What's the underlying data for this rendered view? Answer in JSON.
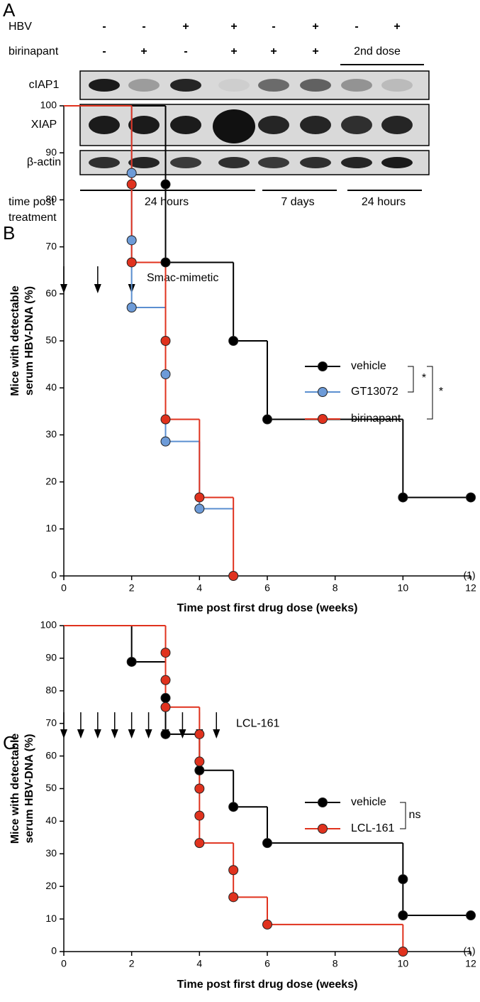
{
  "panel_a": {
    "letter": "A",
    "rows": [
      {
        "label": "HBV",
        "signs": [
          "-",
          "-",
          "+",
          "+",
          "-",
          "+",
          "-",
          "+"
        ]
      },
      {
        "label": "birinapant",
        "signs": [
          "-",
          "+",
          "-",
          "+",
          "+",
          "+"
        ],
        "span_label": "2nd dose"
      }
    ],
    "blots": [
      "cIAP1",
      "XIAP",
      "β-actin"
    ],
    "time_label": [
      "time post",
      "treatment"
    ],
    "time_groups": [
      "24 hours",
      "7 days",
      "24 hours"
    ]
  },
  "chart_data": [
    {
      "type": "step",
      "letter": "B",
      "dose_label": "Smac-mimetic",
      "dose_times": [
        0,
        1,
        2
      ],
      "x_label": "Time post first drug dose (weeks)",
      "y_label": [
        "Mice with detectable",
        "serum HBV-DNA (%)"
      ],
      "xlim": [
        0,
        12
      ],
      "xticks": [
        0,
        2,
        4,
        6,
        8,
        10,
        12
      ],
      "ylim": [
        0,
        100
      ],
      "yticks": [
        0,
        10,
        20,
        30,
        40,
        50,
        60,
        70,
        80,
        90,
        100
      ],
      "annotations": [
        "*",
        "*"
      ],
      "censor_note": "(1)",
      "series": [
        {
          "name": "vehicle",
          "color": "#000000",
          "marker_color": "#000000",
          "x": [
            0,
            3,
            5,
            6,
            10,
            12
          ],
          "values": [
            100,
            66.7,
            50,
            33.3,
            16.7,
            16.7
          ],
          "markers": {
            "x": [
              3,
              3,
              5,
              6,
              10,
              12
            ],
            "values": [
              83.3,
              66.7,
              50,
              33.3,
              16.7,
              16.7
            ]
          }
        },
        {
          "name": "GT13072",
          "color": "#5b8fd0",
          "marker_color": "#6d9bd8",
          "x": [
            0,
            2,
            3,
            4,
            5
          ],
          "values": [
            100,
            57.1,
            28.6,
            14.3,
            14.3
          ],
          "markers": {
            "x": [
              2,
              2,
              2,
              3,
              3,
              4
            ],
            "values": [
              85.7,
              71.4,
              57.1,
              42.9,
              28.6,
              14.3
            ]
          }
        },
        {
          "name": "birinapant",
          "color": "#e0321e",
          "marker_color": "#e0321e",
          "x": [
            0,
            2,
            3,
            4,
            5
          ],
          "values": [
            100,
            66.7,
            33.3,
            16.7,
            0
          ],
          "markers": {
            "x": [
              2,
              2,
              3,
              3,
              4,
              5
            ],
            "values": [
              83.3,
              66.7,
              50,
              33.3,
              16.7,
              0
            ]
          }
        }
      ]
    },
    {
      "type": "step",
      "letter": "C",
      "dose_label": "LCL-161",
      "dose_times": [
        0,
        0.5,
        1,
        1.5,
        2,
        2.5,
        3,
        3.5,
        4,
        4.5
      ],
      "x_label": "Time post first drug dose (weeks)",
      "y_label": [
        "Mice with detectable",
        "serum HBV-DNA (%)"
      ],
      "xlim": [
        0,
        12
      ],
      "xticks": [
        0,
        2,
        4,
        6,
        8,
        10,
        12
      ],
      "ylim": [
        0,
        100
      ],
      "yticks": [
        0,
        10,
        20,
        30,
        40,
        50,
        60,
        70,
        80,
        90,
        100
      ],
      "annotations": [
        "ns"
      ],
      "censor_note": "(1)",
      "series": [
        {
          "name": "vehicle",
          "color": "#000000",
          "marker_color": "#000000",
          "x": [
            0,
            2,
            3,
            4,
            5,
            6,
            10,
            12
          ],
          "values": [
            100,
            88.9,
            66.7,
            55.6,
            44.4,
            33.3,
            11.1,
            11.1
          ],
          "markers": {
            "x": [
              2,
              3,
              3,
              4,
              5,
              6,
              10,
              10,
              12
            ],
            "values": [
              88.9,
              77.8,
              66.7,
              55.6,
              44.4,
              33.3,
              22.2,
              11.1,
              11.1
            ]
          }
        },
        {
          "name": "LCL-161",
          "color": "#e0321e",
          "marker_color": "#e0321e",
          "x": [
            0,
            3,
            4,
            5,
            6,
            10
          ],
          "values": [
            100,
            75,
            33.3,
            16.7,
            8.3,
            0
          ],
          "markers": {
            "x": [
              3,
              3,
              3,
              4,
              4,
              4,
              4,
              4,
              5,
              5,
              6,
              10
            ],
            "values": [
              91.7,
              83.3,
              75,
              66.7,
              58.3,
              50,
              41.7,
              33.3,
              25,
              16.7,
              8.3,
              0
            ]
          }
        }
      ]
    }
  ]
}
